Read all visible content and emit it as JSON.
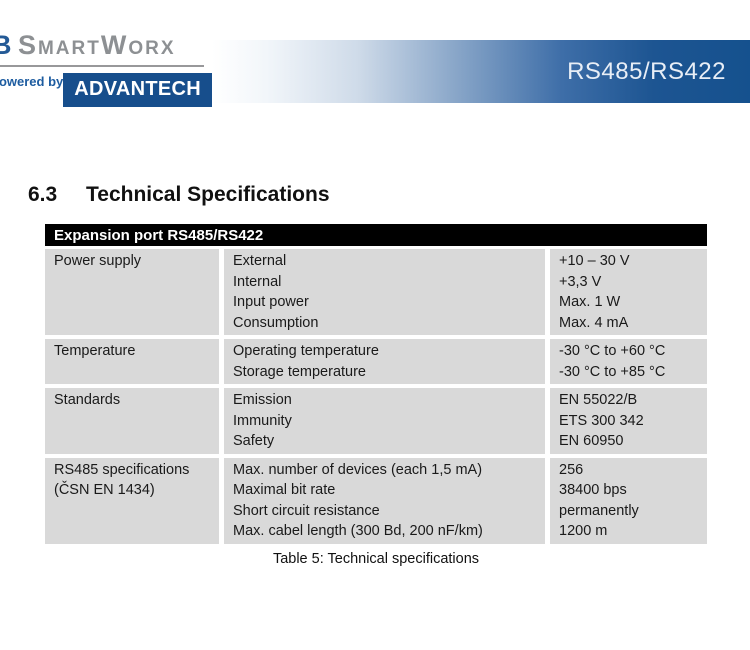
{
  "header": {
    "brand_b": "B",
    "brand_name": "SmartWorx",
    "powered_by": "powered by",
    "advantech": "ADVANTECH",
    "banner_title": "RS485/RS422",
    "colors": {
      "banner_blue": "#15518e",
      "advantech_blue": "#174e8c",
      "brand_gray": "#8d9093",
      "brand_blue": "#245a96",
      "powered_blue": "#1d5ca0"
    }
  },
  "section": {
    "number": "6.3",
    "title": "Technical Specifications"
  },
  "table": {
    "header": "Expansion port RS485/RS422",
    "colors": {
      "header_bar": "#000000",
      "cell_gray": "#d9d9d9"
    },
    "rows": [
      {
        "category": [
          "Power supply"
        ],
        "params": [
          "External",
          "Internal",
          "Input power",
          "Consumption"
        ],
        "values": [
          "+10 – 30 V",
          "+3,3 V",
          "Max. 1 W",
          "Max. 4 mA"
        ]
      },
      {
        "category": [
          "Temperature"
        ],
        "params": [
          "Operating temperature",
          "Storage temperature"
        ],
        "values": [
          "-30 °C to +60 °C",
          "-30 °C to +85 °C"
        ]
      },
      {
        "category": [
          "Standards"
        ],
        "params": [
          "Emission",
          "Immunity",
          "Safety"
        ],
        "values": [
          "EN 55022/B",
          "ETS 300 342",
          "EN 60950"
        ]
      },
      {
        "category": [
          "RS485 specifications",
          "(ČSN EN 1434)"
        ],
        "params": [
          "Max. number of devices (each 1,5 mA)",
          "Maximal bit rate",
          "Short circuit resistance",
          "Max. cabel length (300 Bd, 200 nF/km)"
        ],
        "values": [
          "256",
          "38400 bps",
          "permanently",
          "1200 m"
        ]
      }
    ],
    "caption": "Table 5: Technical specifications"
  }
}
